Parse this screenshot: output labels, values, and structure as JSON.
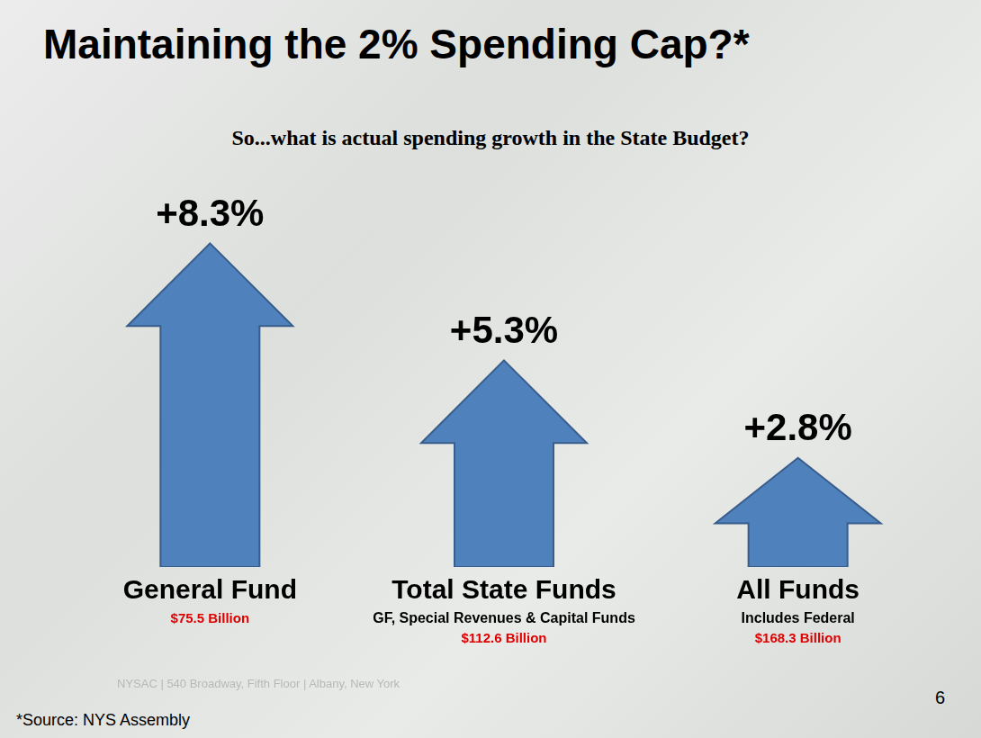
{
  "chart_data": {
    "type": "bar",
    "title": "Maintaining the 2% Spending Cap?*",
    "subtitle": "So...what is actual spending growth in the State Budget?",
    "categories": [
      "General Fund",
      "Total State Funds",
      "All Funds"
    ],
    "category_notes": [
      null,
      "GF, Special Revenues & Capital Funds",
      "Includes Federal"
    ],
    "category_amounts": [
      "$75.5 Billion",
      "$112.6 Billion",
      "$168.3 Billion"
    ],
    "values": [
      8.3,
      5.3,
      2.8
    ],
    "value_labels": [
      "+8.3%",
      "+5.3%",
      "+2.8%"
    ],
    "color": "#4f81bd",
    "ylim": [
      0,
      9
    ],
    "grid": false,
    "data_labels": true,
    "tick_labels": false,
    "footer": "NYSAC | 540 Broadway, Fifth Floor | Albany, New York",
    "source": "*Source: NYS Assembly",
    "page_number": 6
  }
}
